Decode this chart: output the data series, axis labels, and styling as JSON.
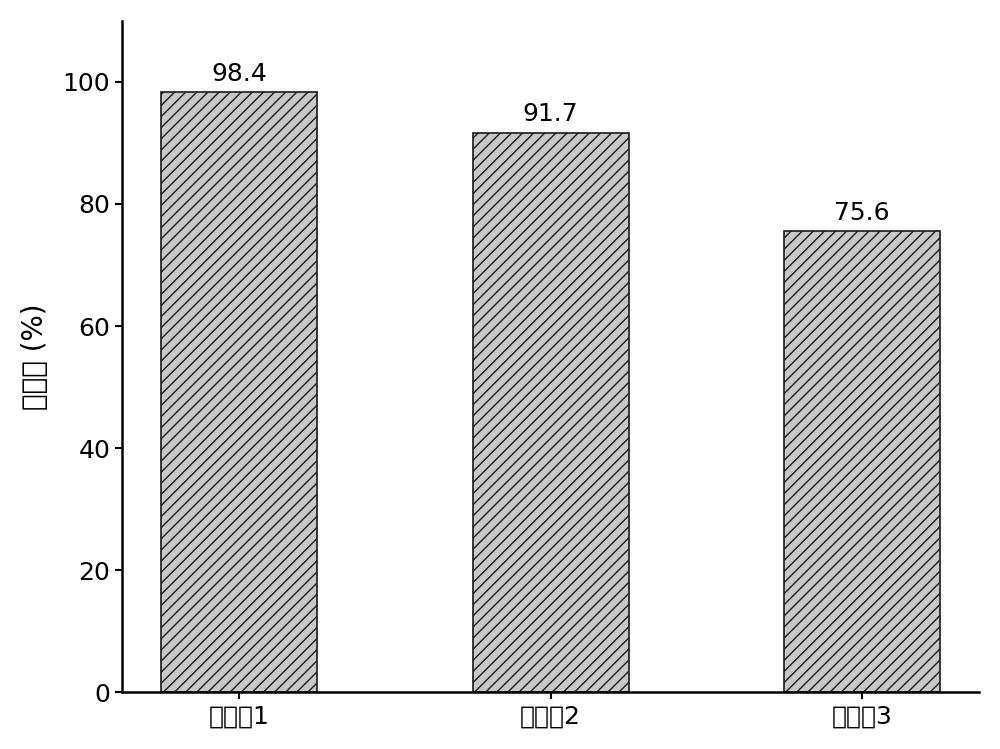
{
  "categories": [
    "实施例1",
    "实施例2",
    "实施例3"
  ],
  "values": [
    98.4,
    91.7,
    75.6
  ],
  "bar_color": "#c8c8c8",
  "bar_edge_color": "#1a1a1a",
  "bar_width": 0.5,
  "ylabel": "去除率 (%)",
  "ylim": [
    0,
    110
  ],
  "yticks": [
    0,
    20,
    40,
    60,
    80,
    100
  ],
  "label_fontsize": 20,
  "tick_fontsize": 18,
  "value_fontsize": 18,
  "hatch_pattern": "///",
  "background_color": "#ffffff",
  "spine_linewidth": 1.8
}
